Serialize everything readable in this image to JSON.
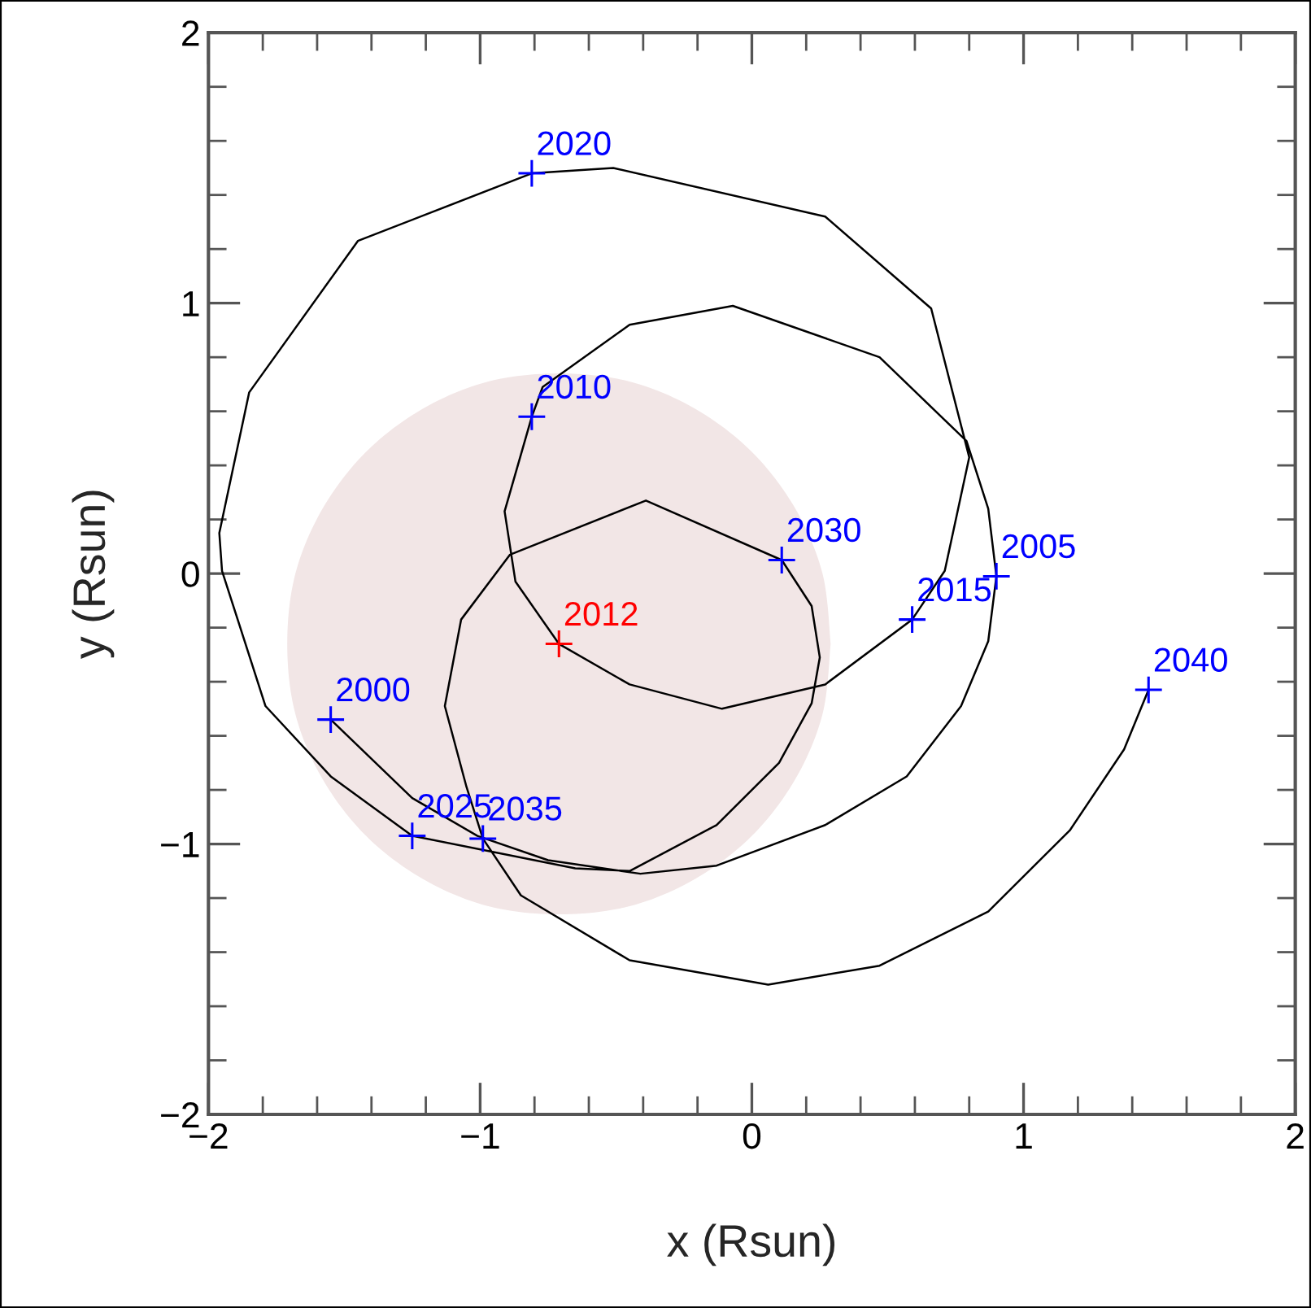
{
  "chart_data": {
    "type": "line",
    "xlabel": "x (Rsun)",
    "ylabel": "y (Rsun)",
    "xlim": [
      -2,
      2
    ],
    "ylim": [
      -2,
      2
    ],
    "xticks": [
      {
        "value": -2,
        "label": "−2"
      },
      {
        "value": -1,
        "label": "−1"
      },
      0,
      1,
      2
    ],
    "yticks": [
      {
        "value": -2,
        "label": "−2"
      },
      {
        "value": -1,
        "label": "−1"
      },
      0,
      1,
      2
    ],
    "grid": false,
    "legend": false,
    "series": [
      {
        "type": "area",
        "color": "#f2e6e6",
        "x": [
          0.29,
          0.26,
          0.16,
          0.0,
          -0.21,
          -0.45,
          -0.71,
          -0.97,
          -1.21,
          -1.42,
          -1.58,
          -1.68,
          -1.71,
          -1.68,
          -1.58,
          -1.42,
          -1.21,
          -0.97,
          -0.71,
          -0.45,
          -0.21,
          0.0,
          0.16,
          0.26,
          0.29
        ],
        "values": [
          -0.26,
          0.0,
          0.24,
          0.45,
          0.61,
          0.71,
          0.74,
          0.71,
          0.61,
          0.45,
          0.24,
          0.0,
          -0.26,
          -0.52,
          -0.76,
          -0.97,
          -1.13,
          -1.23,
          -1.26,
          -1.23,
          -1.13,
          -0.97,
          -0.76,
          -0.52,
          -0.26
        ]
      },
      {
        "color": "#000000",
        "marker": "none",
        "line_style": "solid",
        "x": [
          -1.55,
          -1.25,
          -1.01,
          -0.75,
          -0.41,
          -0.13,
          0.27,
          0.57,
          0.77,
          0.87,
          0.9,
          0.87,
          0.79,
          0.47,
          -0.07,
          -0.45,
          -0.77,
          -0.81,
          -0.91,
          -0.87,
          -0.71,
          -0.45,
          -0.11,
          0.27,
          0.59,
          0.71,
          0.8,
          0.66,
          0.27,
          -0.51,
          -0.81,
          -1.45,
          -1.85,
          -1.96,
          -1.95,
          -1.79,
          -1.55,
          -1.25,
          -0.65,
          -0.45,
          -0.13,
          0.1,
          0.22,
          0.25,
          0.22,
          0.11,
          -0.39,
          -0.89,
          -1.07,
          -1.13,
          -1.05,
          -0.99,
          -0.85,
          -0.45,
          0.06,
          0.47,
          0.87,
          1.17,
          1.37,
          1.46
        ],
        "values": [
          -0.54,
          -0.83,
          -0.97,
          -1.06,
          -1.11,
          -1.08,
          -0.93,
          -0.75,
          -0.49,
          -0.25,
          -0.01,
          0.24,
          0.49,
          0.8,
          0.99,
          0.92,
          0.69,
          0.58,
          0.23,
          -0.03,
          -0.26,
          -0.41,
          -0.5,
          -0.41,
          -0.17,
          0.01,
          0.43,
          0.98,
          1.32,
          1.5,
          1.48,
          1.23,
          0.67,
          0.15,
          0.01,
          -0.49,
          -0.75,
          -0.97,
          -1.09,
          -1.1,
          -0.93,
          -0.7,
          -0.48,
          -0.31,
          -0.12,
          0.05,
          0.27,
          0.07,
          -0.17,
          -0.49,
          -0.79,
          -0.98,
          -1.19,
          -1.43,
          -1.52,
          -1.45,
          -1.25,
          -0.95,
          -0.65,
          -0.43
        ]
      },
      {
        "type": "scatter",
        "color": "#0000ff",
        "marker": "cross",
        "x": [
          -1.55,
          0.9,
          -0.81,
          0.59,
          -0.81,
          -1.25,
          0.11,
          -0.99,
          1.46
        ],
        "values": [
          -0.54,
          -0.01,
          0.58,
          -0.17,
          1.48,
          -0.97,
          0.05,
          -0.98,
          -0.43
        ]
      },
      {
        "type": "scatter",
        "color": "#ff0000",
        "marker": "cross",
        "x": [
          -0.71
        ],
        "values": [
          -0.26
        ]
      }
    ],
    "annotations": [
      {
        "text": "2000",
        "x": -1.55,
        "y": -0.54
      },
      {
        "text": "2005",
        "x": 0.9,
        "y": -0.01
      },
      {
        "text": "2010",
        "x": -0.81,
        "y": 0.58
      },
      {
        "text": "2012",
        "x": -0.71,
        "y": -0.26
      },
      {
        "text": "2015",
        "x": 0.59,
        "y": -0.17
      },
      {
        "text": "2020",
        "x": -0.81,
        "y": 1.48
      },
      {
        "text": "2025",
        "x": -1.25,
        "y": -0.97
      },
      {
        "text": "2030",
        "x": 0.11,
        "y": 0.05
      },
      {
        "text": "2035",
        "x": -0.99,
        "y": -0.98
      },
      {
        "text": "2040",
        "x": 1.46,
        "y": -0.43
      }
    ]
  }
}
